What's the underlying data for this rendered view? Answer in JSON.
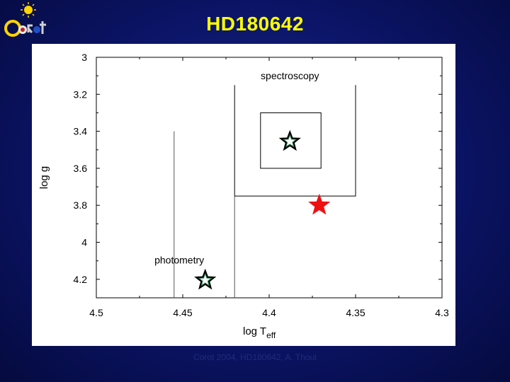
{
  "slide": {
    "title": "HD180642",
    "footer": "Corot 2004, HD180642, A. Thoul",
    "logo": {
      "icon": "corot-sun-logo-icon",
      "text": "CoRoT"
    }
  },
  "chart_data": {
    "type": "scatter",
    "xlabel_main": "log T",
    "xlabel_sub": "eff",
    "ylabel": "log g",
    "xlim": [
      4.5,
      4.3
    ],
    "ylim": [
      3.0,
      4.3
    ],
    "x_inverted": true,
    "y_inverted": true,
    "x_ticks": [
      4.5,
      4.45,
      4.4,
      4.35,
      4.3
    ],
    "x_tick_labels": [
      "4.5",
      "4.45",
      "4.4",
      "4.35",
      "4.3"
    ],
    "y_ticks": [
      3.0,
      3.2,
      3.4,
      3.6,
      3.8,
      4.0,
      4.2
    ],
    "y_tick_labels": [
      "3",
      "3.2",
      "3.4",
      "3.6",
      "3.8",
      "4",
      "4.2"
    ],
    "annotations": [
      {
        "text": "spectroscopy",
        "x": 4.388,
        "y": 3.1
      },
      {
        "text": "photometry",
        "x": 4.452,
        "y": 4.095
      }
    ],
    "boxes": [
      {
        "name": "spectroscopy-outer-box",
        "x0": 4.42,
        "x1": 4.35,
        "y0": 3.15,
        "y1": 3.75,
        "open_top": true
      },
      {
        "name": "spectroscopy-inner-box",
        "x0": 4.405,
        "x1": 4.37,
        "y0": 3.3,
        "y1": 3.6,
        "open_top": false
      }
    ],
    "lines": [
      {
        "name": "photometry-bound-left",
        "x": 4.455,
        "y0": 3.4,
        "y1": 4.3
      },
      {
        "name": "photometry-bound-right",
        "x": 4.42,
        "y0": 3.75,
        "y1": 4.3
      }
    ],
    "points": [
      {
        "name": "spectroscopy-star",
        "x": 4.388,
        "y": 3.455,
        "color": "#000000",
        "style": "outline"
      },
      {
        "name": "red-star",
        "x": 4.371,
        "y": 3.8,
        "color": "#ee1111",
        "style": "filled"
      },
      {
        "name": "photometry-star",
        "x": 4.437,
        "y": 4.205,
        "color": "#000000",
        "style": "outline"
      }
    ],
    "colors": {
      "background": "#0b1466",
      "title": "#ffff00",
      "highlight": "#ee1111"
    }
  }
}
